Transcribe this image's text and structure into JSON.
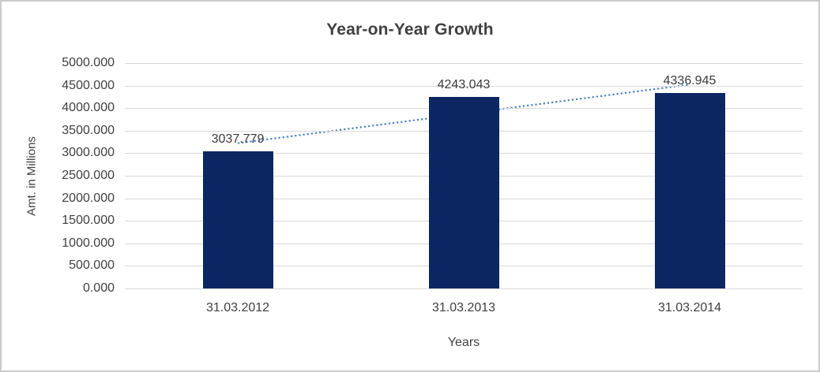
{
  "window": {
    "background": "#ffffff",
    "border_color": "#cbcbcb"
  },
  "chart_data": {
    "type": "bar",
    "title": "Year-on-Year Growth",
    "xlabel": "Years",
    "ylabel": "Amt. in Millions",
    "categories": [
      "31.03.2012",
      "31.03.2013",
      "31.03.2014"
    ],
    "values": [
      3037.779,
      4243.043,
      4336.945
    ],
    "value_labels": [
      "3037.779",
      "4243.043",
      "4336.945"
    ],
    "ylim": [
      0,
      5000
    ],
    "ytick_step": 500,
    "ytick_labels": [
      "5000.000",
      "4500.000",
      "4000.000",
      "3500.000",
      "3000.000",
      "2500.000",
      "2000.000",
      "1500.000",
      "1000.000",
      "500.000",
      "0.000"
    ],
    "grid": true,
    "legend_position": "none",
    "trendline": {
      "type": "linear",
      "style": "dotted",
      "color": "#4b80c2"
    },
    "colors": {
      "bar": "#0c2663",
      "gridline": "#d9d9d9",
      "text": "#3f3f3f",
      "title": "#404040"
    }
  }
}
